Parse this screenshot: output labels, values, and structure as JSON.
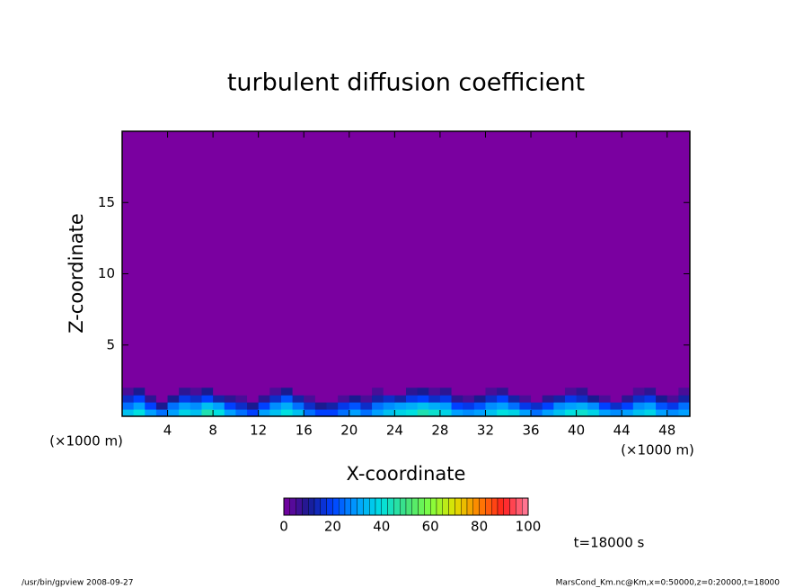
{
  "chart_data": {
    "type": "heatmap",
    "title": "turbulent diffusion coefficient",
    "x_label": "X-coordinate",
    "y_label": "Z-coordinate",
    "x_unit": "(×1000 m)",
    "xlim": [
      0,
      50
    ],
    "ylim": [
      0,
      20
    ],
    "xticks": [
      4,
      8,
      12,
      16,
      20,
      24,
      28,
      32,
      36,
      40,
      44,
      48
    ],
    "yticks": [
      5,
      10,
      15
    ],
    "x": [
      0.5,
      1.5,
      2.5,
      3.5,
      4.5,
      5.5,
      6.5,
      7.5,
      8.5,
      9.5,
      10.5,
      11.5,
      12.5,
      13.5,
      14.5,
      15.5,
      16.5,
      17.5,
      18.5,
      19.5,
      20.5,
      21.5,
      22.5,
      23.5,
      24.5,
      25.5,
      26.5,
      27.5,
      28.5,
      29.5,
      30.5,
      31.5,
      32.5,
      33.5,
      34.5,
      35.5,
      36.5,
      37.5,
      38.5,
      39.5,
      40.5,
      41.5,
      42.5,
      43.5,
      44.5,
      45.5,
      46.5,
      47.5,
      48.5,
      49.5
    ],
    "z": [
      0.25,
      0.75,
      1.25,
      1.75
    ],
    "values": [
      [
        35,
        40,
        30,
        25,
        30,
        38,
        35,
        45,
        40,
        30,
        25,
        20,
        30,
        35,
        40,
        35,
        25,
        20,
        20,
        25,
        30,
        25,
        30,
        35,
        38,
        40,
        45,
        42,
        38,
        30,
        28,
        30,
        35,
        40,
        38,
        30,
        25,
        30,
        35,
        40,
        42,
        38,
        30,
        28,
        30,
        35,
        38,
        30,
        28,
        30
      ],
      [
        25,
        30,
        20,
        10,
        25,
        30,
        28,
        35,
        30,
        20,
        15,
        10,
        20,
        28,
        32,
        25,
        15,
        10,
        12,
        18,
        22,
        15,
        25,
        28,
        30,
        32,
        35,
        32,
        30,
        20,
        18,
        22,
        28,
        30,
        25,
        18,
        15,
        20,
        28,
        30,
        32,
        28,
        20,
        15,
        20,
        28,
        30,
        22,
        18,
        25
      ],
      [
        15,
        20,
        8,
        0,
        10,
        18,
        15,
        20,
        12,
        8,
        5,
        0,
        8,
        15,
        22,
        12,
        5,
        0,
        0,
        5,
        10,
        5,
        12,
        15,
        12,
        18,
        20,
        15,
        18,
        8,
        5,
        10,
        15,
        20,
        12,
        5,
        0,
        8,
        12,
        18,
        15,
        10,
        5,
        0,
        8,
        15,
        18,
        10,
        5,
        12
      ],
      [
        5,
        10,
        0,
        0,
        0,
        8,
        5,
        10,
        0,
        0,
        0,
        0,
        0,
        5,
        10,
        0,
        0,
        0,
        0,
        0,
        0,
        0,
        5,
        0,
        0,
        8,
        10,
        5,
        8,
        0,
        0,
        0,
        5,
        8,
        0,
        0,
        0,
        0,
        0,
        5,
        8,
        0,
        0,
        0,
        0,
        5,
        8,
        0,
        0,
        5
      ]
    ],
    "colorscale": [
      [
        0,
        "#7a00a0"
      ],
      [
        10,
        "#1a1a90"
      ],
      [
        20,
        "#0040ff"
      ],
      [
        30,
        "#00a0ff"
      ],
      [
        40,
        "#00e0e0"
      ],
      [
        50,
        "#40e080"
      ],
      [
        60,
        "#80ff40"
      ],
      [
        70,
        "#e0e000"
      ],
      [
        80,
        "#ff8000"
      ],
      [
        90,
        "#ff2020"
      ],
      [
        100,
        "#ff80a0"
      ]
    ],
    "clim": [
      0,
      100
    ],
    "cticks": [
      0,
      20,
      40,
      60,
      80,
      100
    ],
    "annotation": "t=18000 s",
    "footer_left": "/usr/bin/gpview  2008-09-27",
    "footer_right": "MarsCond_Km.nc@Km,x=0:50000,z=0:20000,t=18000"
  }
}
